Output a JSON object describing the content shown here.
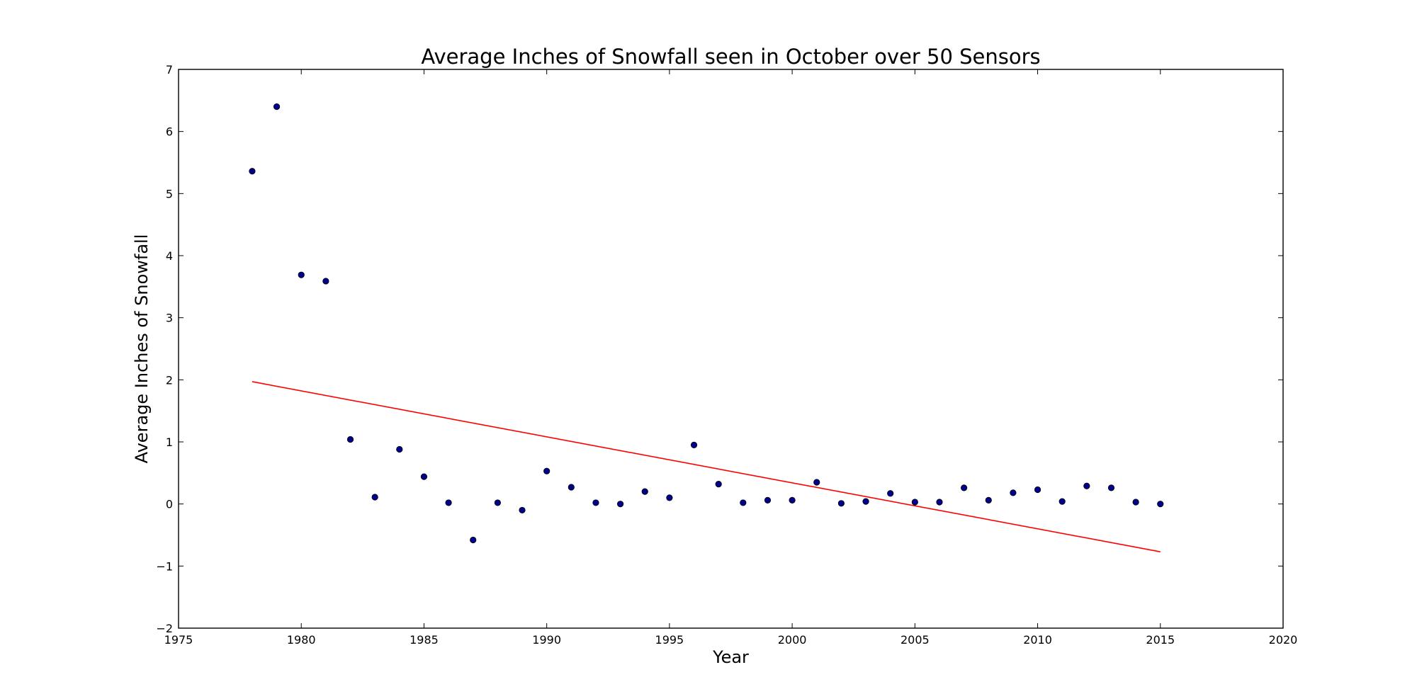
{
  "chart_data": {
    "type": "scatter",
    "title": "Average Inches of Snowfall seen in October over 50 Sensors",
    "xlabel": "Year",
    "ylabel": "Average Inches of Snowfall",
    "xlim": [
      1975,
      2020
    ],
    "ylim": [
      -2,
      7
    ],
    "x_ticks": [
      1975,
      1980,
      1985,
      1990,
      1995,
      2000,
      2005,
      2010,
      2015,
      2020
    ],
    "x_tick_labels": [
      "1975",
      "1980",
      "1985",
      "1990",
      "1995",
      "2000",
      "2005",
      "2010",
      "2015",
      "2020"
    ],
    "y_ticks": [
      -2,
      -1,
      0,
      1,
      2,
      3,
      4,
      5,
      6,
      7
    ],
    "y_tick_labels": [
      "−2",
      "−1",
      "0",
      "1",
      "2",
      "3",
      "4",
      "5",
      "6",
      "7"
    ],
    "grid": false,
    "series": [
      {
        "kind": "scatter",
        "color": "#00008b",
        "x": [
          1978,
          1979,
          1980,
          1981,
          1982,
          1983,
          1984,
          1985,
          1986,
          1987,
          1988,
          1989,
          1990,
          1991,
          1992,
          1993,
          1994,
          1995,
          1996,
          1997,
          1998,
          1999,
          2000,
          2001,
          2002,
          2003,
          2004,
          2005,
          2006,
          2007,
          2008,
          2009,
          2010,
          2011,
          2012,
          2013,
          2014,
          2015
        ],
        "y": [
          5.36,
          6.4,
          3.69,
          3.59,
          1.04,
          0.11,
          0.88,
          0.44,
          0.02,
          -0.58,
          0.02,
          -0.1,
          0.53,
          0.27,
          0.02,
          0.0,
          0.2,
          0.1,
          0.95,
          0.32,
          0.02,
          0.06,
          0.06,
          0.35,
          0.01,
          0.04,
          0.17,
          0.03,
          0.03,
          0.26,
          0.06,
          0.18,
          0.23,
          0.04,
          0.29,
          0.26,
          0.03,
          0.0
        ]
      },
      {
        "kind": "line",
        "color": "#ff0000",
        "x": [
          1978,
          2015
        ],
        "y": [
          1.97,
          -0.77
        ]
      }
    ]
  }
}
